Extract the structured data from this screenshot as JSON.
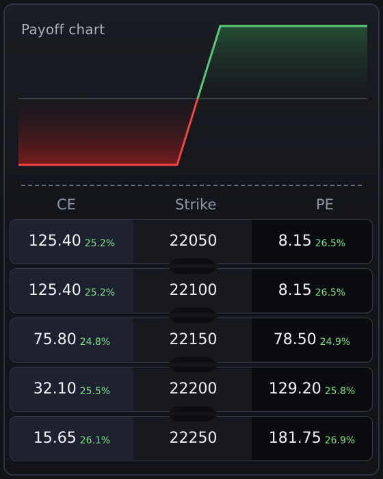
{
  "chart": {
    "title": "Payoff chart",
    "colors": {
      "profit": "#5cc97a",
      "loss": "#f04545",
      "zero_line": "#5d6370"
    }
  },
  "table": {
    "headers": {
      "ce": "CE",
      "strike": "Strike",
      "pe": "PE"
    },
    "rows": [
      {
        "ce_price": "125.40",
        "ce_iv": "25.2%",
        "strike": "22050",
        "pe_price": "8.15",
        "pe_iv": "26.5%"
      },
      {
        "ce_price": "125.40",
        "ce_iv": "25.2%",
        "strike": "22100",
        "pe_price": "8.15",
        "pe_iv": "26.5%"
      },
      {
        "ce_price": "75.80",
        "ce_iv": "24.8%",
        "strike": "22150",
        "pe_price": "78.50",
        "pe_iv": "24.9%"
      },
      {
        "ce_price": "32.10",
        "ce_iv": "25.5%",
        "strike": "22200",
        "pe_price": "129.20",
        "pe_iv": "25.8%"
      },
      {
        "ce_price": "15.65",
        "ce_iv": "26.1%",
        "strike": "22250",
        "pe_price": "181.75",
        "pe_iv": "26.9%"
      }
    ]
  }
}
